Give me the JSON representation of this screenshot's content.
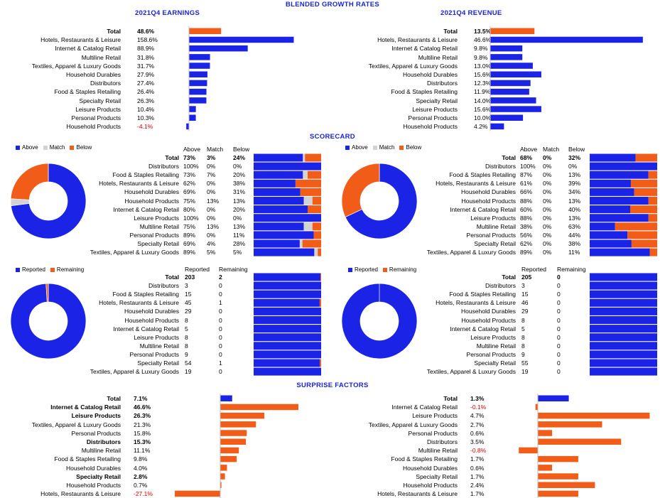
{
  "colors": {
    "blue": "#1a23e6",
    "orange": "#f25c19",
    "gray": "#d3d3d3",
    "red": "#e00000"
  },
  "headers": {
    "blended": "BLENDED GROWTH RATES",
    "scorecard": "SCORECARD",
    "surprise": "SURPRISE FACTORS"
  },
  "chart_data": [
    {
      "id": "earnings",
      "type": "bar",
      "title": "2021Q4 EARNINGS",
      "categories": [
        "Total",
        "Hotels, Restaurants & Leisure",
        "Internet & Catalog Retail",
        "Multiline Retail",
        "Textiles, Apparel & Luxury Goods",
        "Household Durables",
        "Distributors",
        "Food & Staples Retailing",
        "Specialty Retail",
        "Leisure Products",
        "Personal Products",
        "Household Products"
      ],
      "values": [
        48.6,
        158.6,
        88.9,
        31.8,
        31.7,
        27.9,
        27.4,
        26.4,
        26.3,
        10.4,
        10.3,
        -4.1
      ],
      "labels": [
        "48.6%",
        "158.6%",
        "88.9%",
        "31.8%",
        "31.7%",
        "27.9%",
        "27.4%",
        "26.4%",
        "26.3%",
        "10.4%",
        "10.3%",
        "-4.1%"
      ]
    },
    {
      "id": "revenue",
      "type": "bar",
      "title": "2021Q4 REVENUE",
      "categories": [
        "Total",
        "Hotels, Restaurants & Leisure",
        "Internet & Catalog Retail",
        "Multiline Retail",
        "Textiles, Apparel & Luxury Goods",
        "Household Durables",
        "Distributors",
        "Food & Staples Retailing",
        "Specialty Retail",
        "Leisure Products",
        "Personal Products",
        "Household Products"
      ],
      "values": [
        13.5,
        46.6,
        9.8,
        9.8,
        13.0,
        15.6,
        12.3,
        11.9,
        14.0,
        15.6,
        10.0,
        4.2
      ],
      "labels": [
        "13.5%",
        "46.6%",
        "9.8%",
        "9.8%",
        "13.0%",
        "15.6%",
        "12.3%",
        "11.9%",
        "14.0%",
        "15.6%",
        "10.0%",
        "4.2%"
      ]
    },
    {
      "id": "score_left",
      "type": "table",
      "legend": [
        "Above",
        "Match",
        "Below"
      ],
      "columns": [
        "Above",
        "Match",
        "Below"
      ],
      "total": {
        "label": "Total",
        "values": [
          "73%",
          "3%",
          "24%"
        ],
        "num": [
          73,
          3,
          24
        ]
      },
      "rows": [
        {
          "label": "Distributors",
          "values": [
            "100%",
            "0%",
            "0%"
          ],
          "num": [
            100,
            0,
            0
          ]
        },
        {
          "label": "Food & Staples Retailing",
          "values": [
            "73%",
            "7%",
            "20%"
          ],
          "num": [
            73,
            7,
            20
          ]
        },
        {
          "label": "Hotels, Restaurants & Leisure",
          "values": [
            "62%",
            "0%",
            "38%"
          ],
          "num": [
            62,
            0,
            38
          ]
        },
        {
          "label": "Household Durables",
          "values": [
            "69%",
            "0%",
            "31%"
          ],
          "num": [
            69,
            0,
            31
          ]
        },
        {
          "label": "Household Products",
          "values": [
            "75%",
            "13%",
            "13%"
          ],
          "num": [
            75,
            13,
            13
          ]
        },
        {
          "label": "Internet & Catalog Retail",
          "values": [
            "80%",
            "0%",
            "20%"
          ],
          "num": [
            80,
            0,
            20
          ]
        },
        {
          "label": "Leisure Products",
          "values": [
            "100%",
            "0%",
            "0%"
          ],
          "num": [
            100,
            0,
            0
          ]
        },
        {
          "label": "Multiline Retail",
          "values": [
            "75%",
            "13%",
            "13%"
          ],
          "num": [
            75,
            13,
            13
          ]
        },
        {
          "label": "Personal Products",
          "values": [
            "89%",
            "0%",
            "11%"
          ],
          "num": [
            89,
            0,
            11
          ]
        },
        {
          "label": "Specialty Retail",
          "values": [
            "69%",
            "4%",
            "28%"
          ],
          "num": [
            69,
            4,
            28
          ]
        },
        {
          "label": "Textiles, Apparel & Luxury Goods",
          "values": [
            "89%",
            "5%",
            "5%"
          ],
          "num": [
            89,
            5,
            5
          ]
        }
      ],
      "pie": [
        73,
        3,
        24
      ]
    },
    {
      "id": "score_right",
      "type": "table",
      "legend": [
        "Above",
        "Match",
        "Below"
      ],
      "columns": [
        "Above",
        "Match",
        "Below"
      ],
      "total": {
        "label": "Total",
        "values": [
          "68%",
          "0%",
          "32%"
        ],
        "num": [
          68,
          0,
          32
        ]
      },
      "rows": [
        {
          "label": "Distributors",
          "values": [
            "100%",
            "0%",
            "0%"
          ],
          "num": [
            100,
            0,
            0
          ]
        },
        {
          "label": "Food & Staples Retailing",
          "values": [
            "87%",
            "0%",
            "13%"
          ],
          "num": [
            87,
            0,
            13
          ]
        },
        {
          "label": "Hotels, Restaurants & Leisure",
          "values": [
            "61%",
            "0%",
            "39%"
          ],
          "num": [
            61,
            0,
            39
          ]
        },
        {
          "label": "Household Durables",
          "values": [
            "66%",
            "0%",
            "34%"
          ],
          "num": [
            66,
            0,
            34
          ]
        },
        {
          "label": "Household Products",
          "values": [
            "88%",
            "0%",
            "13%"
          ],
          "num": [
            88,
            0,
            13
          ]
        },
        {
          "label": "Internet & Catalog Retail",
          "values": [
            "60%",
            "0%",
            "40%"
          ],
          "num": [
            60,
            0,
            40
          ]
        },
        {
          "label": "Leisure Products",
          "values": [
            "88%",
            "0%",
            "13%"
          ],
          "num": [
            88,
            0,
            13
          ]
        },
        {
          "label": "Multiline Retail",
          "values": [
            "38%",
            "0%",
            "63%"
          ],
          "num": [
            38,
            0,
            63
          ]
        },
        {
          "label": "Personal Products",
          "values": [
            "56%",
            "0%",
            "44%"
          ],
          "num": [
            56,
            0,
            44
          ]
        },
        {
          "label": "Specialty Retail",
          "values": [
            "62%",
            "0%",
            "38%"
          ],
          "num": [
            62,
            0,
            38
          ]
        },
        {
          "label": "Textiles, Apparel & Luxury Goods",
          "values": [
            "89%",
            "0%",
            "11%"
          ],
          "num": [
            89,
            0,
            11
          ]
        }
      ],
      "pie": [
        68,
        0,
        32
      ]
    },
    {
      "id": "report_left",
      "type": "table",
      "legend": [
        "Reported",
        "Remaining"
      ],
      "columns": [
        "Reported",
        "Remaining"
      ],
      "total": {
        "label": "Total",
        "values": [
          "203",
          "2"
        ],
        "num": [
          203,
          2
        ]
      },
      "rows": [
        {
          "label": "Distributors",
          "values": [
            "3",
            "0"
          ],
          "num": [
            3,
            0
          ]
        },
        {
          "label": "Food & Staples Retailing",
          "values": [
            "15",
            "0"
          ],
          "num": [
            15,
            0
          ]
        },
        {
          "label": "Hotels, Restaurants & Leisure",
          "values": [
            "45",
            "1"
          ],
          "num": [
            45,
            1
          ]
        },
        {
          "label": "Household Durables",
          "values": [
            "29",
            "0"
          ],
          "num": [
            29,
            0
          ]
        },
        {
          "label": "Household Products",
          "values": [
            "8",
            "0"
          ],
          "num": [
            8,
            0
          ]
        },
        {
          "label": "Internet & Catalog Retail",
          "values": [
            "5",
            "0"
          ],
          "num": [
            5,
            0
          ]
        },
        {
          "label": "Leisure Products",
          "values": [
            "8",
            "0"
          ],
          "num": [
            8,
            0
          ]
        },
        {
          "label": "Multiline Retail",
          "values": [
            "8",
            "0"
          ],
          "num": [
            8,
            0
          ]
        },
        {
          "label": "Personal Products",
          "values": [
            "9",
            "0"
          ],
          "num": [
            9,
            0
          ]
        },
        {
          "label": "Specialty Retail",
          "values": [
            "54",
            "1"
          ],
          "num": [
            54,
            1
          ]
        },
        {
          "label": "Textiles, Apparel & Luxury Goods",
          "values": [
            "19",
            "0"
          ],
          "num": [
            19,
            0
          ]
        }
      ],
      "pie": [
        203,
        2
      ]
    },
    {
      "id": "report_right",
      "type": "table",
      "legend": [
        "Reported",
        "Remaining"
      ],
      "columns": [
        "Reported",
        "Remaining"
      ],
      "total": {
        "label": "Total",
        "values": [
          "205",
          "0"
        ],
        "num": [
          205,
          0
        ]
      },
      "rows": [
        {
          "label": "Distributors",
          "values": [
            "3",
            "0"
          ],
          "num": [
            3,
            0
          ]
        },
        {
          "label": "Food & Staples Retailing",
          "values": [
            "15",
            "0"
          ],
          "num": [
            15,
            0
          ]
        },
        {
          "label": "Hotels, Restaurants & Leisure",
          "values": [
            "46",
            "0"
          ],
          "num": [
            46,
            0
          ]
        },
        {
          "label": "Household Durables",
          "values": [
            "29",
            "0"
          ],
          "num": [
            29,
            0
          ]
        },
        {
          "label": "Household Products",
          "values": [
            "8",
            "0"
          ],
          "num": [
            8,
            0
          ]
        },
        {
          "label": "Internet & Catalog Retail",
          "values": [
            "5",
            "0"
          ],
          "num": [
            5,
            0
          ]
        },
        {
          "label": "Leisure Products",
          "values": [
            "8",
            "0"
          ],
          "num": [
            8,
            0
          ]
        },
        {
          "label": "Multiline Retail",
          "values": [
            "8",
            "0"
          ],
          "num": [
            8,
            0
          ]
        },
        {
          "label": "Personal Products",
          "values": [
            "9",
            "0"
          ],
          "num": [
            9,
            0
          ]
        },
        {
          "label": "Specialty Retail",
          "values": [
            "55",
            "0"
          ],
          "num": [
            55,
            0
          ]
        },
        {
          "label": "Textiles, Apparel & Luxury Goods",
          "values": [
            "19",
            "0"
          ],
          "num": [
            19,
            0
          ]
        }
      ],
      "pie": [
        205,
        0
      ]
    },
    {
      "id": "surprise_left",
      "type": "bar",
      "categories": [
        "Total",
        "Internet & Catalog Retail",
        "Leisure Products",
        "Textiles, Apparel & Luxury Goods",
        "Personal Products",
        "Distributors",
        "Multiline Retail",
        "Food & Staples Retailing",
        "Household Durables",
        "Specialty Retail",
        "Household Products",
        "Hotels, Restaurants & Leisure"
      ],
      "values": [
        7.1,
        46.6,
        26.3,
        21.3,
        15.8,
        15.3,
        11.1,
        9.8,
        4.0,
        2.8,
        0.7,
        -27.1
      ],
      "labels": [
        "7.1%",
        "46.6%",
        "26.3%",
        "21.3%",
        "15.8%",
        "15.3%",
        "11.1%",
        "9.8%",
        "4.0%",
        "2.8%",
        "0.7%",
        "-27.1%"
      ],
      "bold": [
        true,
        true,
        true,
        false,
        false,
        true,
        false,
        false,
        false,
        true,
        false,
        false
      ]
    },
    {
      "id": "surprise_right",
      "type": "bar",
      "categories": [
        "Total",
        "Internet & Catalog Retail",
        "Leisure Products",
        "Textiles, Apparel & Luxury Goods",
        "Personal Products",
        "Distributors",
        "Multiline Retail",
        "Food & Staples Retailing",
        "Household Durables",
        "Specialty Retail",
        "Household Products",
        "Hotels, Restaurants & Leisure"
      ],
      "values": [
        1.3,
        -0.1,
        4.7,
        2.7,
        0.6,
        3.5,
        -0.8,
        1.7,
        0.6,
        1.7,
        2.4,
        1.7
      ],
      "labels": [
        "1.3%",
        "-0.1%",
        "4.7%",
        "2.7%",
        "0.6%",
        "3.5%",
        "-0.8%",
        "1.7%",
        "0.6%",
        "1.7%",
        "2.4%",
        "1.7%"
      ],
      "bold": [
        true,
        false,
        false,
        false,
        false,
        false,
        false,
        false,
        false,
        false,
        false,
        false
      ]
    }
  ]
}
